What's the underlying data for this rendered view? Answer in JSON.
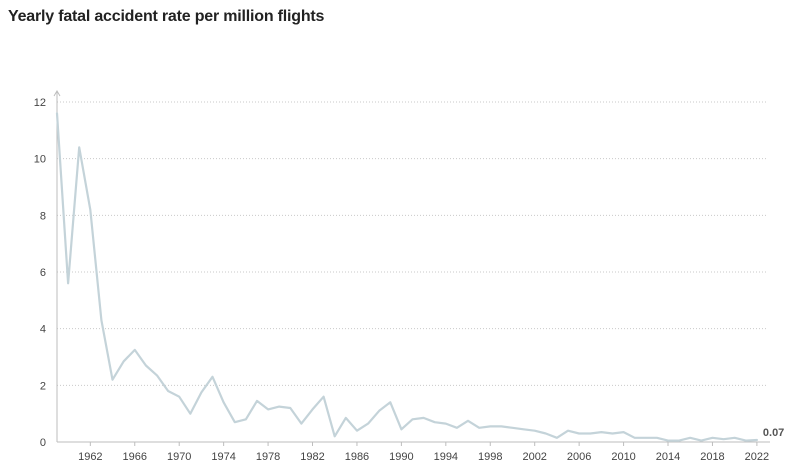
{
  "chart_data": {
    "type": "line",
    "title": "Yearly fatal accident rate per million flights",
    "xlabel": "",
    "ylabel": "",
    "xlim": [
      1959,
      2023
    ],
    "ylim": [
      0,
      12
    ],
    "yticks": [
      "0",
      "2",
      "4",
      "6",
      "8",
      "10",
      "12"
    ],
    "xticks": [
      "1962",
      "1966",
      "1970",
      "1974",
      "1978",
      "1982",
      "1986",
      "1990",
      "1994",
      "1998",
      "2002",
      "2006",
      "2010",
      "2014",
      "2018",
      "2022"
    ],
    "grid": true,
    "legend": "none",
    "end_label": "0.07",
    "line_color": "#c4d3d9",
    "series": [
      {
        "x": [
          1959,
          1960,
          1961,
          1962,
          1963,
          1964,
          1965,
          1966,
          1967,
          1968,
          1969,
          1970,
          1971,
          1972,
          1973,
          1974,
          1975,
          1976,
          1977,
          1978,
          1979,
          1980,
          1981,
          1982,
          1983,
          1984,
          1985,
          1986,
          1987,
          1988,
          1989,
          1990,
          1991,
          1992,
          1993,
          1994,
          1995,
          1996,
          1997,
          1998,
          1999,
          2000,
          2001,
          2002,
          2003,
          2004,
          2005,
          2006,
          2007,
          2008,
          2009,
          2010,
          2011,
          2012,
          2013,
          2014,
          2015,
          2016,
          2017,
          2018,
          2019,
          2020,
          2021,
          2022
        ],
        "values": [
          11.6,
          5.6,
          10.4,
          8.2,
          4.3,
          2.2,
          2.85,
          3.25,
          2.7,
          2.35,
          1.8,
          1.6,
          1.0,
          1.75,
          2.3,
          1.4,
          0.7,
          0.8,
          1.45,
          1.15,
          1.25,
          1.2,
          0.65,
          1.15,
          1.6,
          0.2,
          0.85,
          0.4,
          0.65,
          1.1,
          1.4,
          0.45,
          0.8,
          0.85,
          0.7,
          0.65,
          0.5,
          0.75,
          0.5,
          0.55,
          0.55,
          0.5,
          0.45,
          0.4,
          0.3,
          0.15,
          0.4,
          0.3,
          0.3,
          0.35,
          0.3,
          0.35,
          0.15,
          0.15,
          0.15,
          0.05,
          0.05,
          0.15,
          0.05,
          0.15,
          0.1,
          0.15,
          0.05,
          0.07
        ]
      }
    ]
  }
}
